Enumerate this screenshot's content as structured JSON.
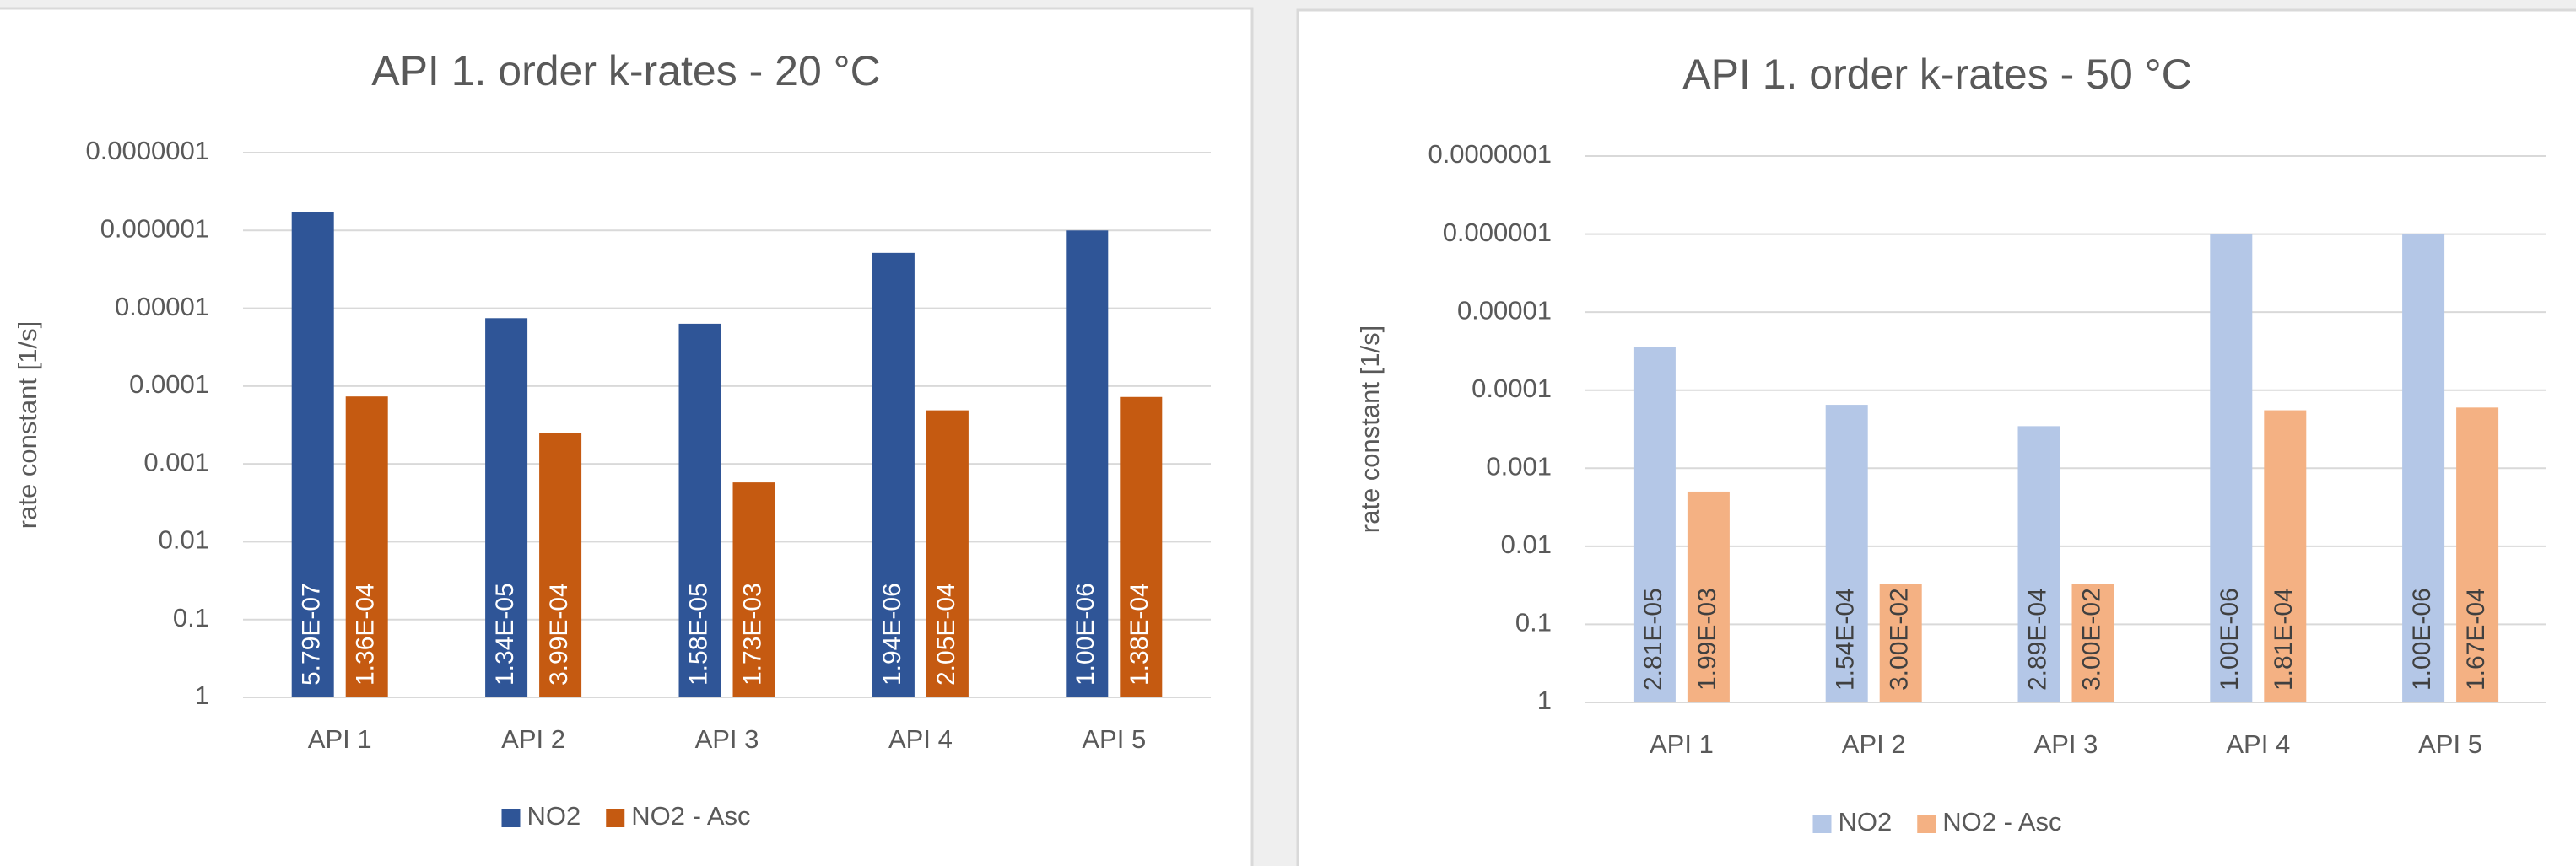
{
  "chart_data": [
    {
      "type": "bar",
      "title": "API 1. order k-rates - 20 °C",
      "y_label": "rate constant [1/s]",
      "categories": [
        "API 1",
        "API 2",
        "API 3",
        "API 4",
        "API 5"
      ],
      "series": [
        {
          "name": "NO2",
          "color": "#2f5597",
          "values": [
            5.79e-07,
            1.34e-05,
            1.58e-05,
            1.94e-06,
            1e-06
          ],
          "value_labels": [
            "5.79E-07",
            "1.34E-05",
            "1.58E-05",
            "1.94E-06",
            "1.00E-06"
          ]
        },
        {
          "name": "NO2 - Asc",
          "color": "#c55a11",
          "values": [
            0.000136,
            0.000399,
            0.00173,
            0.000205,
            0.000138
          ],
          "value_labels": [
            "1.36E-04",
            "3.99E-04",
            "1.73E-03",
            "2.05E-04",
            "1.38E-04"
          ]
        }
      ],
      "value_label_color": "#ffffff",
      "log_scale": true,
      "ylim": [
        1,
        1e-07
      ],
      "yticks": [
        1,
        0.1,
        0.01,
        0.001,
        0.0001,
        1e-05,
        1e-06,
        {
          "value": 1e-07,
          "label": "0.0000001"
        }
      ],
      "grid": true,
      "legend": "bottom"
    },
    {
      "type": "bar",
      "title": "API 1. order k-rates - 50 °C",
      "y_label": "rate constant [1/s]",
      "categories": [
        "API 1",
        "API 2",
        "API 3",
        "API 4",
        "API 5"
      ],
      "series": [
        {
          "name": "NO2",
          "color": "#b4c7e7",
          "values": [
            2.81e-05,
            0.000154,
            0.000289,
            1e-06,
            1e-06
          ],
          "value_labels": [
            "2.81E-05",
            "1.54E-04",
            "2.89E-04",
            "1.00E-06",
            "1.00E-06"
          ]
        },
        {
          "name": "NO2 - Asc",
          "color": "#f4b183",
          "values": [
            0.00199,
            0.03,
            0.03,
            0.000181,
            0.000167
          ],
          "value_labels": [
            "1.99E-03",
            "3.00E-02",
            "3.00E-02",
            "1.81E-04",
            "1.67E-04"
          ]
        }
      ],
      "value_label_color": "#404040",
      "log_scale": true,
      "ylim": [
        1,
        1e-07
      ],
      "yticks": [
        1,
        0.1,
        0.01,
        0.001,
        0.0001,
        1e-05,
        1e-06,
        {
          "value": 1e-07,
          "label": "0.0000001"
        }
      ],
      "grid": true,
      "legend": "bottom"
    }
  ]
}
